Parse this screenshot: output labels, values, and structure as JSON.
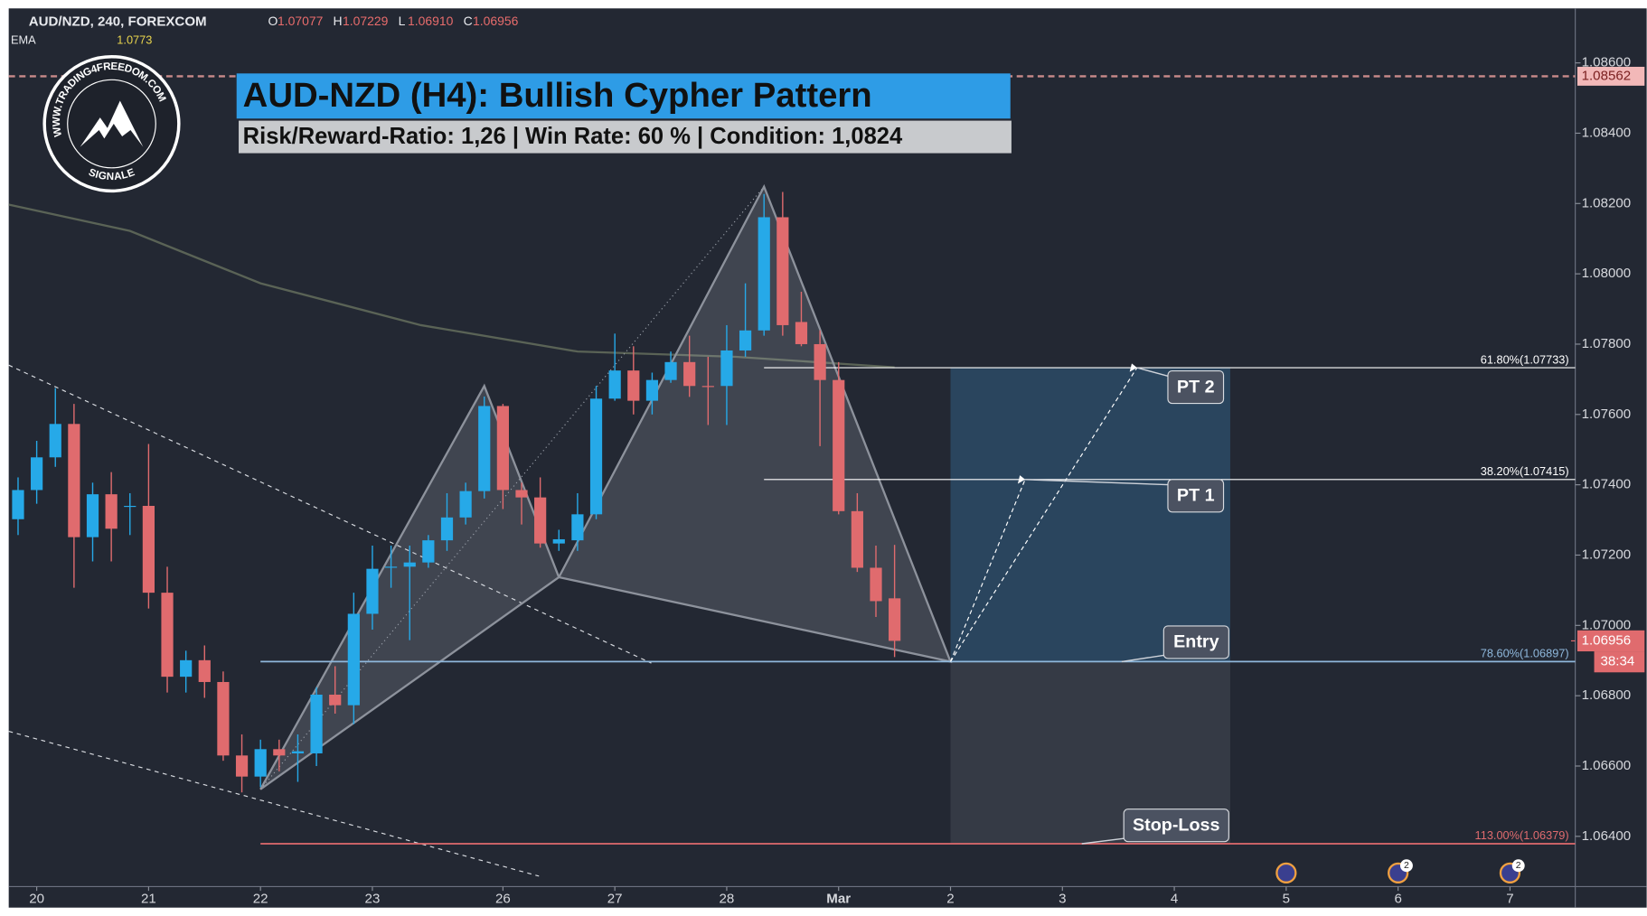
{
  "chart_data": {
    "type": "candlestick",
    "header": {
      "symbol": "AUD/NZD, 240, FOREXCOM",
      "ohlc": [
        {
          "label": "O",
          "value": "1.07077"
        },
        {
          "label": "H",
          "value": "1.07229"
        },
        {
          "label": "L",
          "value": "1.06910"
        },
        {
          "label": "C",
          "value": "1.06956"
        }
      ],
      "ema_label": "EMA",
      "ema_value": "1.0773"
    },
    "title": "AUD-NZD (H4): Bullish Cypher Pattern",
    "subtitle": "Risk/Reward-Ratio: 1,26 | Win Rate: 60 % | Condition: 1,0824",
    "logo": {
      "url": "WWW.TRADING4FREEDOM.COM",
      "tag": "SIGNALE"
    },
    "up_color": "#26a9e8",
    "down_color": "#e06b6e",
    "open": [
      1.07302,
      1.07385,
      1.07478,
      1.07573,
      1.07251,
      1.07373,
      1.07337,
      1.0734,
      1.07093,
      1.06854,
      1.06901,
      1.06839,
      1.0663,
      1.0657,
      1.06648,
      1.06636,
      1.06636,
      1.06803,
      1.06773,
      1.07033,
      1.07164,
      1.07167,
      1.07179,
      1.07242,
      1.07307,
      1.07382,
      1.07624,
      1.07385,
      1.07364,
      1.07233,
      1.07242,
      1.07316,
      1.07645,
      1.07725,
      1.07639,
      1.07698,
      1.07749,
      1.07681,
      1.07681,
      1.07782,
      1.07839,
      1.08161,
      1.07863,
      1.078,
      1.07698,
      1.07325,
      1.07164,
      1.07077
    ],
    "high": [
      1.07421,
      1.07525,
      1.07675,
      1.0763,
      1.07406,
      1.07436,
      1.07376,
      1.07516,
      1.07167,
      1.06928,
      1.06943,
      1.06869,
      1.0669,
      1.06675,
      1.06675,
      1.0669,
      1.06824,
      1.06884,
      1.07093,
      1.07227,
      1.07227,
      1.07227,
      1.07257,
      1.07376,
      1.07406,
      1.07651,
      1.0763,
      1.07406,
      1.07421,
      1.07272,
      1.07376,
      1.07681,
      1.0783,
      1.07794,
      1.07719,
      1.07779,
      1.07824,
      1.07764,
      1.07854,
      1.07973,
      1.08227,
      1.08233,
      1.07949,
      1.07839,
      1.07749,
      1.07376,
      1.07227,
      1.07229
    ],
    "low": [
      1.07257,
      1.07346,
      1.07451,
      1.07107,
      1.07182,
      1.07182,
      1.07257,
      1.07048,
      1.06809,
      1.06809,
      1.06794,
      1.06615,
      1.06525,
      1.0654,
      1.06585,
      1.06555,
      1.066,
      1.06749,
      1.06719,
      1.06988,
      1.07107,
      1.06958,
      1.07164,
      1.07212,
      1.07287,
      1.07361,
      1.07331,
      1.07287,
      1.07221,
      1.07212,
      1.07212,
      1.07302,
      1.07639,
      1.076,
      1.076,
      1.0769,
      1.0765,
      1.0757,
      1.0757,
      1.07764,
      1.07824,
      1.07824,
      1.07794,
      1.0751,
      1.07316,
      1.07152,
      1.07024,
      1.0691
    ],
    "close": [
      1.07385,
      1.07478,
      1.07573,
      1.07251,
      1.07373,
      1.07275,
      1.0734,
      1.07093,
      1.06854,
      1.06901,
      1.06839,
      1.0663,
      1.0657,
      1.06648,
      1.0663,
      1.06642,
      1.06803,
      1.06773,
      1.07033,
      1.07161,
      1.07167,
      1.07179,
      1.07242,
      1.07307,
      1.07382,
      1.07624,
      1.07385,
      1.07364,
      1.07233,
      1.07245,
      1.07316,
      1.07645,
      1.07725,
      1.07639,
      1.07698,
      1.07749,
      1.07681,
      1.07678,
      1.07782,
      1.07839,
      1.08161,
      1.07854,
      1.078,
      1.07698,
      1.07325,
      1.07164,
      1.07069,
      1.06956
    ],
    "ema": {
      "x": [
        -0.5,
        6,
        13,
        21.6,
        30,
        38.5,
        47
      ],
      "values": [
        1.08197,
        1.08122,
        1.07973,
        1.07854,
        1.07779,
        1.07764,
        1.07734
      ]
    },
    "pattern": {
      "x": [
        13,
        25,
        29,
        40,
        50
      ],
      "values": [
        1.06534,
        1.07681,
        1.07137,
        1.08248,
        1.06897
      ]
    },
    "levels": [
      {
        "value": 1.07733,
        "label": "61.80%(1.07733)",
        "color": "#ffffff"
      },
      {
        "value": 1.07415,
        "label": "38.20%(1.07415)",
        "color": "#ffffff"
      },
      {
        "value": 1.06897,
        "label": "78.60%(1.06897)",
        "color": "#8fb8dc"
      },
      {
        "value": 1.06379,
        "label": "113.00%(1.06379)",
        "color": "#e06b6e"
      }
    ],
    "annotations": [
      "PT 2",
      "PT 1",
      "Entry",
      "Stop-Loss"
    ],
    "alert_line": 1.08562,
    "last_price": 1.06956,
    "countdown": "38:34",
    "xlim": [
      -0.5,
      83.5
    ],
    "xticks": [
      {
        "value": 1,
        "label": "20"
      },
      {
        "value": 7,
        "label": "21"
      },
      {
        "value": 13,
        "label": "22"
      },
      {
        "value": 19,
        "label": "23"
      },
      {
        "value": 26,
        "label": "26"
      },
      {
        "value": 32,
        "label": "27"
      },
      {
        "value": 38,
        "label": "28"
      },
      {
        "value": 44,
        "label": "Mar"
      },
      {
        "value": 50,
        "label": "2"
      },
      {
        "value": 56,
        "label": "3"
      },
      {
        "value": 62,
        "label": "4"
      },
      {
        "value": 68,
        "label": "5"
      },
      {
        "value": 74,
        "label": "6"
      },
      {
        "value": 80,
        "label": "7"
      }
    ],
    "ylim": [
      1.06257,
      1.08755
    ],
    "yticks": [
      {
        "value": 1.064,
        "label": "1.06400"
      },
      {
        "value": 1.066,
        "label": "1.06600"
      },
      {
        "value": 1.068,
        "label": "1.06800"
      },
      {
        "value": 1.07,
        "label": "1.07000"
      },
      {
        "value": 1.072,
        "label": "1.07200"
      },
      {
        "value": 1.074,
        "label": "1.07400"
      },
      {
        "value": 1.076,
        "label": "1.07600"
      },
      {
        "value": 1.078,
        "label": "1.07800"
      },
      {
        "value": 1.08,
        "label": "1.08000"
      },
      {
        "value": 1.082,
        "label": "1.08200"
      },
      {
        "value": 1.084,
        "label": "1.08400"
      },
      {
        "value": 1.086,
        "label": "1.08600"
      }
    ],
    "events": {
      "x": [
        68,
        74,
        80
      ],
      "badges": [
        null,
        2,
        2
      ]
    }
  }
}
